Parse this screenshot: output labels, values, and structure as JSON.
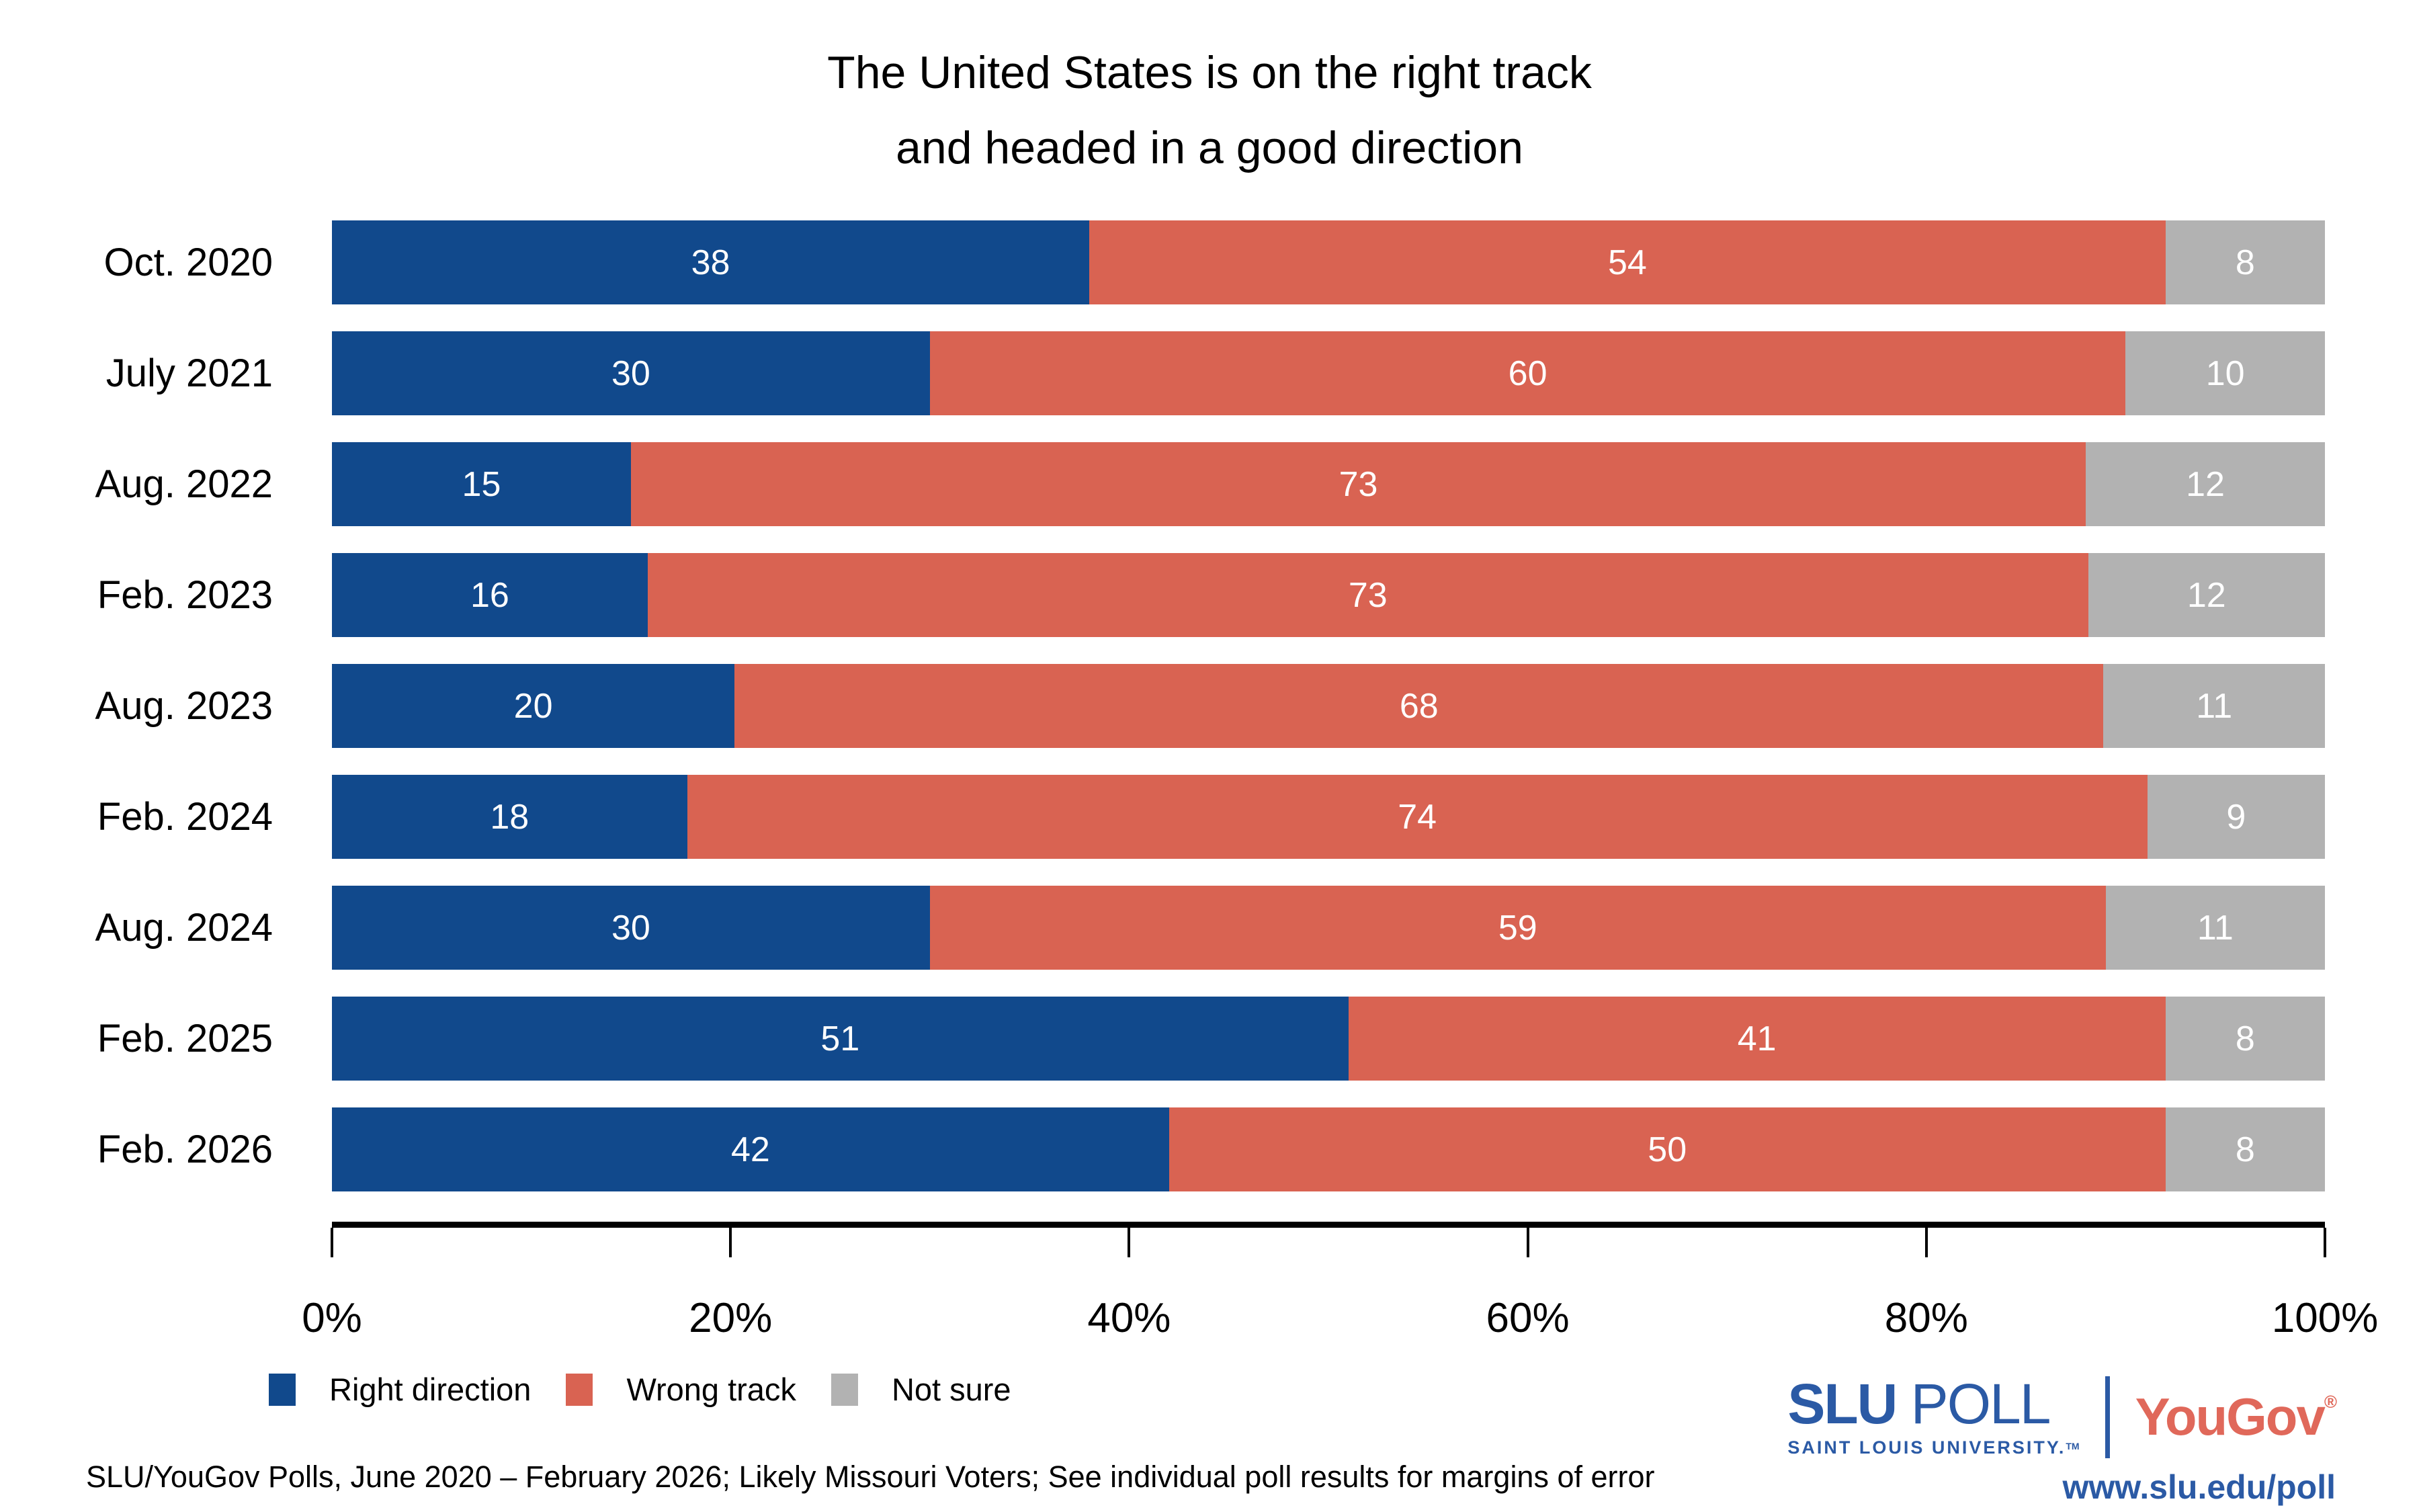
{
  "title": {
    "line1": "The United States is on the right track",
    "line2": "and headed in a good direction"
  },
  "chart_data": {
    "type": "bar",
    "stacked": true,
    "orientation": "horizontal",
    "title": "The United States is on the right track and headed in a good direction",
    "categories": [
      "Oct. 2020",
      "July 2021",
      "Aug. 2022",
      "Feb. 2023",
      "Aug. 2023",
      "Feb. 2024",
      "Aug. 2024",
      "Feb. 2025",
      "Feb. 2026"
    ],
    "series": [
      {
        "name": "Right direction",
        "color": "#11498C",
        "values": [
          38,
          30,
          15,
          16,
          20,
          18,
          30,
          51,
          42
        ]
      },
      {
        "name": "Wrong track",
        "color": "#D96352",
        "values": [
          54,
          60,
          73,
          73,
          68,
          74,
          59,
          41,
          50
        ]
      },
      {
        "name": "Not sure",
        "color": "#B2B2B2",
        "values": [
          8,
          10,
          12,
          12,
          11,
          9,
          11,
          8,
          8
        ]
      }
    ],
    "value_labels_color": "#ffffff",
    "x_axis": {
      "range": [
        0,
        100
      ],
      "tick_labels": [
        "0%",
        "20%",
        "40%",
        "60%",
        "80%",
        "100%"
      ]
    },
    "grid": false,
    "legend_position": "bottom-left"
  },
  "footer": {
    "source_note": "SLU/YouGov Polls, June 2020 – February 2026; Likely Missouri Voters; See individual poll results for margins of error"
  },
  "branding": {
    "slu_word": "SLU",
    "poll_word": "POLL",
    "slu_subtitle": "SAINT LOUIS UNIVERSITY.",
    "slu_trademark": "TM",
    "yougov_word": "YouGov",
    "yougov_registered": "®",
    "url": "www.slu.edu/poll",
    "slu_blue": "#2B5AA5",
    "yougov_red": "#E0685A"
  }
}
